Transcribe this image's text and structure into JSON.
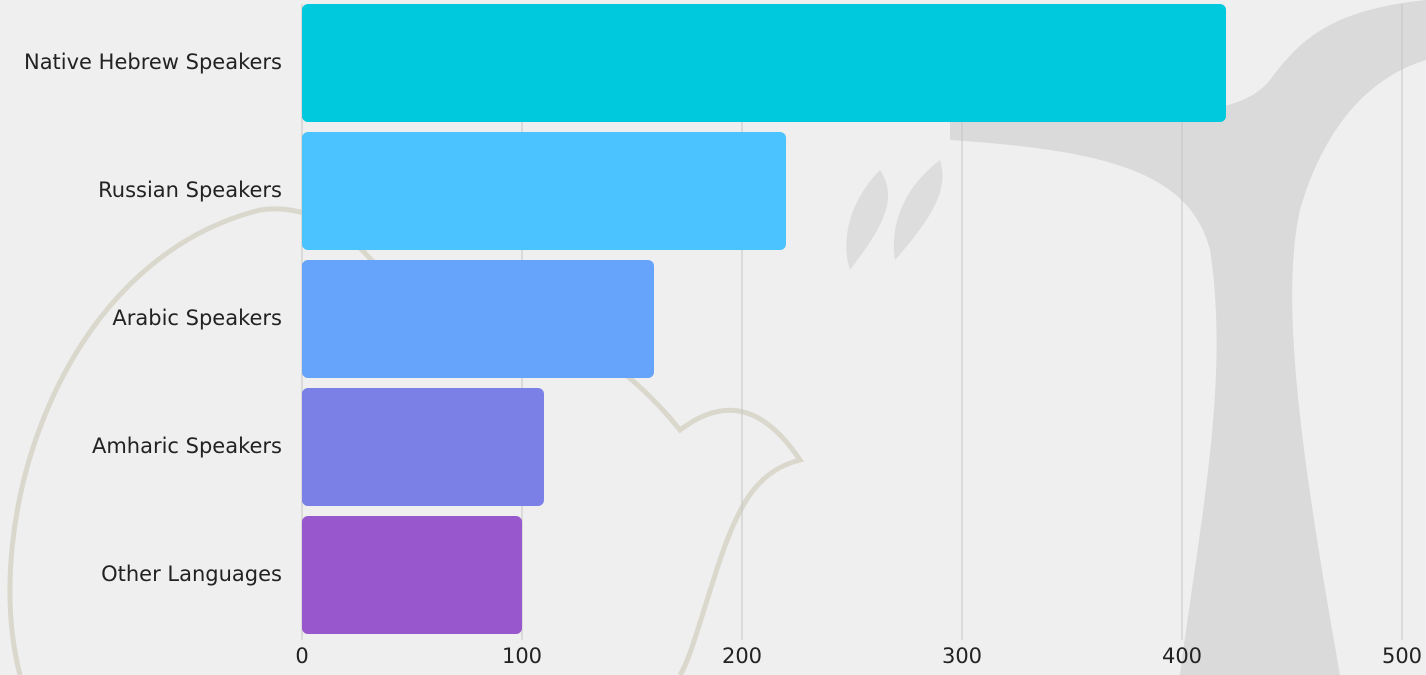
{
  "chart_data": {
    "type": "bar",
    "orientation": "horizontal",
    "categories": [
      "Native Hebrew Speakers",
      "Russian Speakers",
      "Arabic Speakers",
      "Amharic Speakers",
      "Other Languages"
    ],
    "values": [
      420,
      220,
      160,
      110,
      100
    ],
    "colors": [
      "#00c9dd",
      "#4ac3fe",
      "#66a3fb",
      "#7b80e6",
      "#9857cd"
    ],
    "xlim": [
      0,
      500
    ],
    "xticks": [
      0,
      100,
      200,
      300,
      400,
      500
    ],
    "grid": true
  }
}
